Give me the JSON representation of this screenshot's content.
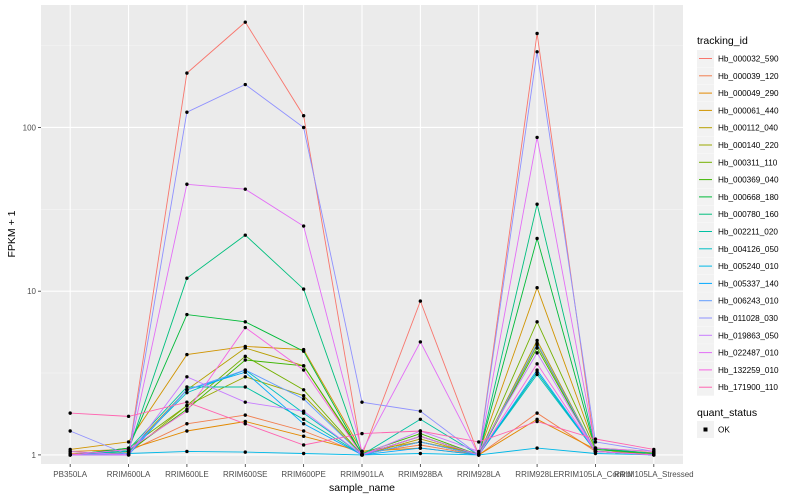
{
  "chart_data": {
    "type": "line",
    "xlabel": "sample_name",
    "ylabel": "FPKM + 1",
    "y_scale": "log10",
    "ylim": [
      0.88,
      560
    ],
    "y_ticks": [
      1,
      10,
      100
    ],
    "y_tick_labels": [
      "1",
      "10",
      "100"
    ],
    "grid": true,
    "legend_placement": "right",
    "categories": [
      "PB350LA",
      "RRIM600LA",
      "RRIM600LE",
      "RRIM600SE",
      "RRIM600PE",
      "RRIM901LA",
      "RRIM928BA",
      "RRIM928LA",
      "RRIM928LE",
      "RRIM105LA_Control",
      "RRIM105LA_Stressed"
    ],
    "legend_title": "tracking_id",
    "series": [
      {
        "name": "Hb_000032_590",
        "color": "#F8766D",
        "values": [
          1.0,
          1.0,
          215,
          440,
          118,
          1.0,
          8.7,
          1.0,
          375,
          1.05,
          1.02
        ]
      },
      {
        "name": "Hb_000039_120",
        "color": "#F17E4F",
        "values": [
          1.02,
          1.05,
          1.55,
          1.75,
          1.4,
          1.02,
          1.15,
          1.0,
          1.8,
          1.05,
          1.02
        ]
      },
      {
        "name": "Hb_000049_290",
        "color": "#E38900",
        "values": [
          1.05,
          1.08,
          1.4,
          1.6,
          1.3,
          1.05,
          1.1,
          1.0,
          1.65,
          1.08,
          1.03
        ]
      },
      {
        "name": "Hb_000061_440",
        "color": "#D09400",
        "values": [
          1.08,
          1.2,
          4.1,
          4.6,
          4.4,
          1.05,
          1.2,
          1.02,
          10.5,
          1.1,
          1.05
        ]
      },
      {
        "name": "Hb_000112_040",
        "color": "#B79F00",
        "values": [
          1.0,
          1.05,
          2.5,
          4.5,
          3.5,
          1.0,
          1.25,
          1.0,
          5.0,
          1.05,
          1.02
        ]
      },
      {
        "name": "Hb_000140_220",
        "color": "#99A800",
        "values": [
          1.0,
          1.03,
          2.0,
          3.0,
          2.3,
          1.0,
          1.3,
          1.0,
          4.7,
          1.05,
          1.0
        ]
      },
      {
        "name": "Hb_000311_110",
        "color": "#74B000",
        "values": [
          1.0,
          1.1,
          2.0,
          4.0,
          2.5,
          1.0,
          1.2,
          1.0,
          6.5,
          1.08,
          1.02
        ]
      },
      {
        "name": "Hb_000369_040",
        "color": "#3DB600",
        "values": [
          1.0,
          1.05,
          1.9,
          3.8,
          3.5,
          1.02,
          1.35,
          1.0,
          4.5,
          1.05,
          1.0
        ]
      },
      {
        "name": "Hb_000668_180",
        "color": "#00BA38",
        "values": [
          1.0,
          1.1,
          7.2,
          6.5,
          4.3,
          1.0,
          1.3,
          1.0,
          21,
          1.08,
          1.02
        ]
      },
      {
        "name": "Hb_000780_160",
        "color": "#00BF7D",
        "values": [
          1.0,
          1.06,
          12,
          22,
          10.3,
          1.0,
          1.2,
          1.0,
          34,
          1.1,
          1.02
        ]
      },
      {
        "name": "Hb_002211_020",
        "color": "#00C1A3",
        "values": [
          1.0,
          1.08,
          2.6,
          2.6,
          1.65,
          1.0,
          1.65,
          1.0,
          3.2,
          1.05,
          1.0
        ]
      },
      {
        "name": "Hb_004126_050",
        "color": "#00BFC4",
        "values": [
          1.0,
          1.05,
          2.4,
          3.3,
          1.8,
          1.0,
          1.3,
          1.0,
          3.1,
          1.05,
          1.0
        ]
      },
      {
        "name": "Hb_005240_010",
        "color": "#00B8E7",
        "values": [
          1.0,
          1.02,
          1.05,
          1.04,
          1.02,
          1.0,
          1.02,
          1.0,
          1.1,
          1.02,
          1.0
        ]
      },
      {
        "name": "Hb_005337_140",
        "color": "#00A9FF",
        "values": [
          1.0,
          1.0,
          2.5,
          3.2,
          1.55,
          1.0,
          1.1,
          1.0,
          3.3,
          1.05,
          1.0
        ]
      },
      {
        "name": "Hb_006243_010",
        "color": "#619CFF",
        "values": [
          1.0,
          1.02,
          2.5,
          3.3,
          2.2,
          1.0,
          1.2,
          1.0,
          4.8,
          1.05,
          1.0
        ]
      },
      {
        "name": "Hb_011028_030",
        "color": "#8F91FF",
        "values": [
          1.4,
          1.0,
          124,
          183,
          100,
          2.1,
          1.85,
          1.0,
          290,
          1.2,
          1.05
        ]
      },
      {
        "name": "Hb_019863_050",
        "color": "#C77CFF",
        "values": [
          1.05,
          1.0,
          3.0,
          2.1,
          1.85,
          1.0,
          1.4,
          1.05,
          4.2,
          1.05,
          1.0
        ]
      },
      {
        "name": "Hb_022487_010",
        "color": "#E36EF6",
        "values": [
          1.0,
          1.0,
          45,
          42,
          25,
          1.05,
          4.9,
          1.0,
          87,
          1.1,
          1.05
        ]
      },
      {
        "name": "Hb_132259_010",
        "color": "#F564E3",
        "values": [
          1.0,
          1.08,
          1.85,
          6.0,
          3.3,
          1.0,
          1.3,
          1.0,
          3.6,
          1.05,
          1.0
        ]
      },
      {
        "name": "Hb_171900_110",
        "color": "#FF64B0",
        "values": [
          1.8,
          1.72,
          2.1,
          1.55,
          1.15,
          1.35,
          1.4,
          1.2,
          1.6,
          1.25,
          1.08
        ]
      }
    ],
    "quant_legend": {
      "title": "quant_status",
      "items": [
        "OK"
      ]
    }
  }
}
